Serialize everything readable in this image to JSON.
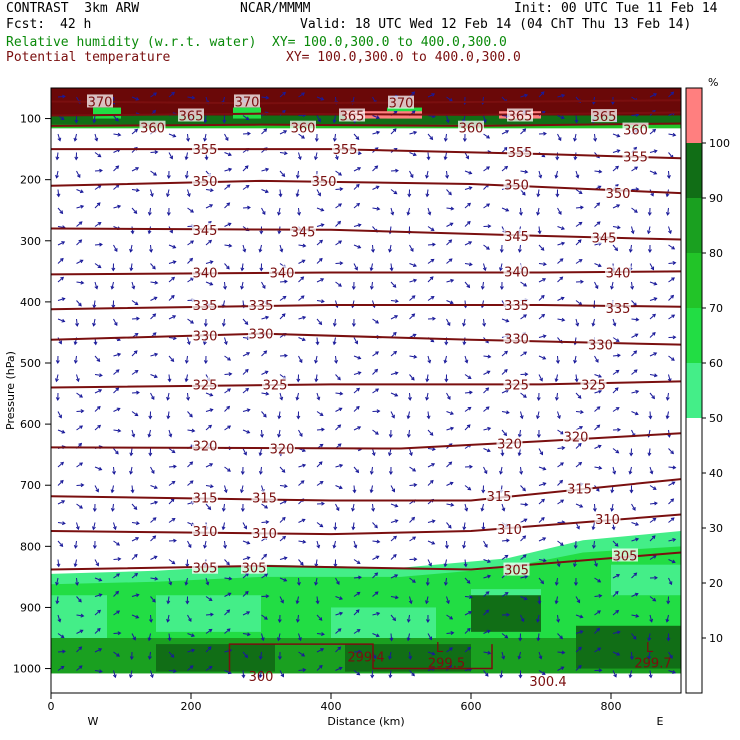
{
  "header": {
    "model": "CONTRAST  3km ARW",
    "center": "NCAR/MMMM",
    "init": "Init: 00 UTC Tue 11 Feb 14",
    "fcst_label": "Fcst:",
    "fcst_value": "42 h",
    "valid": "Valid: 18 UTC Wed 12 Feb 14 (04 ChT Thu 13 Feb 14)",
    "field1": "Relative humidity (w.r.t. water)",
    "field1_xy": "XY= 100.0,300.0 to 400.0,300.0",
    "field2": "Potential temperature",
    "field2_xy": "XY= 100.0,300.0 to 400.0,300.0"
  },
  "colors": {
    "theta_line": "#7a0f0f",
    "wind_arrow": "#1a1a9a",
    "rh_50": "#44ee88",
    "rh_60": "#22dd44",
    "rh_70": "#22c428",
    "rh_80": "#1aa020",
    "rh_90": "#116e16",
    "rh_100": "#ff7f7f"
  },
  "chart_data": {
    "type": "contour-cross-section",
    "xlabel": "Distance (km)",
    "ylabel": "Pressure (hPa)",
    "xlim": [
      0,
      900
    ],
    "ylim": [
      1040,
      50
    ],
    "x_ticks": [
      0,
      200,
      400,
      600,
      800
    ],
    "y_ticks": [
      100,
      200,
      300,
      400,
      500,
      600,
      700,
      800,
      900,
      1000
    ],
    "end_labels": {
      "left": "W",
      "right": "E"
    },
    "colorbar": {
      "unit": "%",
      "ticks": [
        10,
        20,
        30,
        40,
        50,
        60,
        70,
        80,
        90,
        100
      ],
      "levels": [
        {
          "from": 50,
          "to": 60,
          "color": "#44ee88"
        },
        {
          "from": 60,
          "to": 70,
          "color": "#22dd44"
        },
        {
          "from": 70,
          "to": 80,
          "color": "#22c428"
        },
        {
          "from": 80,
          "to": 90,
          "color": "#1aa020"
        },
        {
          "from": 90,
          "to": 100,
          "color": "#116e16"
        },
        {
          "from": 100,
          "to": 110,
          "color": "#ff7f7f"
        }
      ]
    },
    "theta_contours": [
      {
        "value": 370,
        "points": [
          [
            0,
            72
          ],
          [
            300,
            75
          ],
          [
            600,
            73
          ],
          [
            900,
            70
          ]
        ],
        "labels": [
          [
            70,
            72,
            "370"
          ],
          [
            280,
            72,
            "370"
          ],
          [
            500,
            74,
            "370"
          ]
        ]
      },
      {
        "value": 365,
        "points": [
          [
            0,
            95
          ],
          [
            300,
            92
          ],
          [
            600,
            94
          ],
          [
            900,
            90
          ]
        ],
        "labels": [
          [
            200,
            95,
            "365"
          ],
          [
            430,
            95,
            "365"
          ],
          [
            670,
            95,
            "365"
          ],
          [
            790,
            96,
            "365"
          ]
        ]
      },
      {
        "value": 360,
        "points": [
          [
            0,
            112
          ],
          [
            300,
            110
          ],
          [
            600,
            112
          ],
          [
            900,
            108
          ]
        ],
        "labels": [
          [
            145,
            115,
            "360"
          ],
          [
            360,
            115,
            "360"
          ],
          [
            600,
            115,
            "360"
          ],
          [
            835,
            118,
            "360"
          ]
        ]
      },
      {
        "value": 355,
        "points": [
          [
            0,
            150
          ],
          [
            400,
            150
          ],
          [
            700,
            158
          ],
          [
            900,
            165
          ]
        ],
        "labels": [
          [
            220,
            150,
            "355"
          ],
          [
            420,
            150,
            "355"
          ],
          [
            670,
            155,
            "355"
          ],
          [
            835,
            162,
            "355"
          ]
        ]
      },
      {
        "value": 350,
        "points": [
          [
            0,
            210
          ],
          [
            300,
            202
          ],
          [
            600,
            207
          ],
          [
            900,
            222
          ]
        ],
        "labels": [
          [
            220,
            202,
            "350"
          ],
          [
            390,
            202,
            "350"
          ],
          [
            665,
            208,
            "350"
          ],
          [
            810,
            222,
            "350"
          ]
        ]
      },
      {
        "value": 345,
        "points": [
          [
            0,
            280
          ],
          [
            400,
            282
          ],
          [
            700,
            292
          ],
          [
            900,
            298
          ]
        ],
        "labels": [
          [
            220,
            282,
            "345"
          ],
          [
            360,
            285,
            "345"
          ],
          [
            665,
            292,
            "345"
          ],
          [
            790,
            295,
            "345"
          ]
        ]
      },
      {
        "value": 340,
        "points": [
          [
            0,
            355
          ],
          [
            400,
            352
          ],
          [
            700,
            352
          ],
          [
            900,
            350
          ]
        ],
        "labels": [
          [
            220,
            352,
            "340"
          ],
          [
            330,
            352,
            "340"
          ],
          [
            665,
            350,
            "340"
          ],
          [
            810,
            352,
            "340"
          ]
        ]
      },
      {
        "value": 335,
        "points": [
          [
            0,
            412
          ],
          [
            400,
            405
          ],
          [
            700,
            405
          ],
          [
            900,
            408
          ]
        ],
        "labels": [
          [
            220,
            405,
            "335"
          ],
          [
            300,
            405,
            "335"
          ],
          [
            665,
            405,
            "335"
          ],
          [
            810,
            410,
            "335"
          ]
        ]
      },
      {
        "value": 330,
        "points": [
          [
            0,
            462
          ],
          [
            300,
            452
          ],
          [
            600,
            462
          ],
          [
            900,
            470
          ]
        ],
        "labels": [
          [
            220,
            455,
            "330"
          ],
          [
            300,
            452,
            "330"
          ],
          [
            665,
            460,
            "330"
          ],
          [
            785,
            470,
            "330"
          ]
        ]
      },
      {
        "value": 325,
        "points": [
          [
            0,
            540
          ],
          [
            400,
            535
          ],
          [
            700,
            535
          ],
          [
            900,
            530
          ]
        ],
        "labels": [
          [
            220,
            535,
            "325"
          ],
          [
            320,
            535,
            "325"
          ],
          [
            665,
            535,
            "325"
          ],
          [
            775,
            535,
            "325"
          ]
        ]
      },
      {
        "value": 320,
        "points": [
          [
            0,
            638
          ],
          [
            500,
            640
          ],
          [
            700,
            628
          ],
          [
            900,
            615
          ]
        ],
        "labels": [
          [
            220,
            635,
            "320"
          ],
          [
            330,
            640,
            "320"
          ],
          [
            655,
            632,
            "320"
          ],
          [
            750,
            620,
            "320"
          ]
        ]
      },
      {
        "value": 315,
        "points": [
          [
            0,
            718
          ],
          [
            400,
            725
          ],
          [
            600,
            725
          ],
          [
            900,
            690
          ]
        ],
        "labels": [
          [
            220,
            720,
            "315"
          ],
          [
            305,
            720,
            "315"
          ],
          [
            640,
            718,
            "315"
          ],
          [
            755,
            705,
            "315"
          ]
        ]
      },
      {
        "value": 310,
        "points": [
          [
            0,
            775
          ],
          [
            400,
            780
          ],
          [
            600,
            775
          ],
          [
            900,
            748
          ]
        ],
        "labels": [
          [
            220,
            775,
            "310"
          ],
          [
            305,
            778,
            "310"
          ],
          [
            655,
            772,
            "310"
          ],
          [
            795,
            755,
            "310"
          ]
        ]
      },
      {
        "value": 305,
        "points": [
          [
            0,
            838
          ],
          [
            300,
            832
          ],
          [
            600,
            838
          ],
          [
            900,
            810
          ]
        ],
        "labels": [
          [
            220,
            835,
            "305"
          ],
          [
            290,
            835,
            "305"
          ],
          [
            665,
            838,
            "305"
          ],
          [
            820,
            815,
            "305"
          ]
        ]
      }
    ],
    "low_level_labels": [
      "299.4",
      "299.5",
      "300.4",
      "299.7",
      "300"
    ],
    "low_level_marks": [
      "L",
      "L"
    ]
  }
}
